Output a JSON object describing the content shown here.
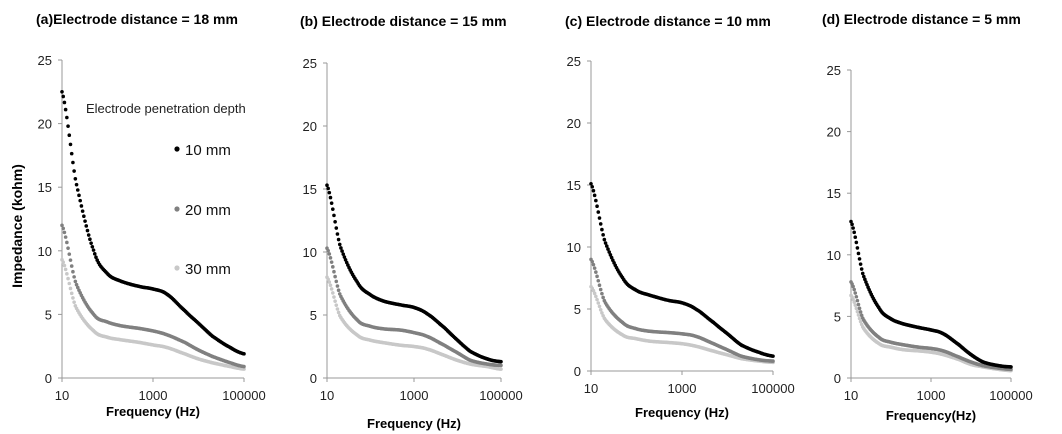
{
  "figure": {
    "ylabel": "Impedance (kohm)",
    "legend": {
      "title": "Electrode penetration depth",
      "entries": [
        "10 mm",
        "20 mm",
        "30 mm"
      ],
      "placement": "inside panel (a), upper-right"
    },
    "colors": {
      "series_10mm": "#000000",
      "series_20mm": "#808080",
      "series_30mm": "#c8c8c8"
    }
  },
  "chart_data": [
    {
      "type": "scatter",
      "title": "(a)Electrode distance = 18 mm",
      "xlabel": "Frequency  (Hz)",
      "xscale": "log",
      "xlim": [
        10,
        100000
      ],
      "ylim": [
        0,
        25
      ],
      "yticks": [
        0,
        5,
        10,
        15,
        20,
        25
      ],
      "xticks": [
        10,
        1000,
        100000
      ],
      "grid": false,
      "x": [
        10,
        20,
        50,
        100,
        200,
        500,
        1000,
        2000,
        5000,
        10000,
        20000,
        50000,
        100000
      ],
      "series": [
        {
          "name": "10 mm",
          "values": [
            22.5,
            15.5,
            10.0,
            8.2,
            7.6,
            7.2,
            7.0,
            6.6,
            5.3,
            4.3,
            3.3,
            2.4,
            1.9
          ]
        },
        {
          "name": "20 mm",
          "values": [
            12.0,
            7.5,
            5.0,
            4.4,
            4.1,
            3.9,
            3.7,
            3.4,
            2.8,
            2.2,
            1.7,
            1.2,
            0.9
          ]
        },
        {
          "name": "30 mm",
          "values": [
            9.3,
            5.6,
            3.7,
            3.2,
            3.0,
            2.8,
            2.6,
            2.4,
            1.9,
            1.5,
            1.2,
            0.9,
            0.7
          ]
        }
      ]
    },
    {
      "type": "scatter",
      "title": "(b) Electrode distance = 15 mm",
      "xlabel": "Frequency (Hz)",
      "xscale": "log",
      "xlim": [
        10,
        100000
      ],
      "ylim": [
        0,
        25
      ],
      "yticks": [
        0,
        5,
        10,
        15,
        20,
        25
      ],
      "xticks": [
        10,
        1000,
        100000
      ],
      "grid": false,
      "x": [
        10,
        20,
        50,
        100,
        200,
        500,
        1000,
        2000,
        5000,
        10000,
        20000,
        50000,
        100000
      ],
      "series": [
        {
          "name": "10 mm",
          "values": [
            15.3,
            10.5,
            7.6,
            6.6,
            6.1,
            5.8,
            5.6,
            5.1,
            4.0,
            3.0,
            2.1,
            1.5,
            1.3
          ]
        },
        {
          "name": "20 mm",
          "values": [
            10.3,
            6.6,
            4.6,
            4.1,
            3.9,
            3.8,
            3.6,
            3.3,
            2.6,
            2.0,
            1.4,
            1.1,
            1.0
          ]
        },
        {
          "name": "30 mm",
          "values": [
            8.0,
            4.9,
            3.4,
            3.0,
            2.8,
            2.6,
            2.5,
            2.3,
            1.8,
            1.4,
            1.1,
            0.9,
            0.7
          ]
        }
      ]
    },
    {
      "type": "scatter",
      "title": "(c) Electrode distance = 10 mm",
      "xlabel": "Frequency (Hz)",
      "xscale": "log",
      "xlim": [
        10,
        100000
      ],
      "ylim": [
        0,
        25
      ],
      "yticks": [
        0,
        5,
        10,
        15,
        20,
        25
      ],
      "xticks": [
        10,
        1000,
        100000
      ],
      "grid": false,
      "x": [
        10,
        20,
        50,
        100,
        200,
        500,
        1000,
        2000,
        5000,
        10000,
        20000,
        50000,
        100000
      ],
      "series": [
        {
          "name": "10 mm",
          "values": [
            15.1,
            10.5,
            7.5,
            6.5,
            6.1,
            5.7,
            5.5,
            5.0,
            3.9,
            3.0,
            2.1,
            1.5,
            1.2
          ]
        },
        {
          "name": "20 mm",
          "values": [
            9.0,
            5.6,
            3.9,
            3.4,
            3.2,
            3.1,
            3.0,
            2.8,
            2.2,
            1.7,
            1.2,
            0.9,
            0.8
          ]
        },
        {
          "name": "30 mm",
          "values": [
            6.8,
            4.2,
            2.9,
            2.6,
            2.4,
            2.3,
            2.2,
            2.0,
            1.6,
            1.3,
            1.0,
            0.8,
            0.7
          ]
        }
      ]
    },
    {
      "type": "scatter",
      "title": "(d) Electrode distance = 5 mm",
      "xlabel": "Frequency(Hz)",
      "xscale": "log",
      "xlim": [
        10,
        100000
      ],
      "ylim": [
        0,
        25
      ],
      "yticks": [
        0,
        5,
        10,
        15,
        20,
        25
      ],
      "xticks": [
        10,
        1000,
        100000
      ],
      "grid": false,
      "x": [
        10,
        20,
        50,
        100,
        200,
        500,
        1000,
        2000,
        5000,
        10000,
        20000,
        50000,
        100000
      ],
      "series": [
        {
          "name": "10 mm",
          "values": [
            12.7,
            8.4,
            5.7,
            4.8,
            4.4,
            4.1,
            3.9,
            3.6,
            2.7,
            1.9,
            1.3,
            1.0,
            0.9
          ]
        },
        {
          "name": "20 mm",
          "values": [
            7.8,
            4.8,
            3.3,
            2.9,
            2.7,
            2.5,
            2.4,
            2.2,
            1.7,
            1.3,
            1.0,
            0.8,
            0.7
          ]
        },
        {
          "name": "30 mm",
          "values": [
            6.7,
            4.1,
            2.8,
            2.5,
            2.3,
            2.2,
            2.1,
            1.9,
            1.5,
            1.1,
            0.9,
            0.7,
            0.6
          ]
        }
      ]
    }
  ]
}
